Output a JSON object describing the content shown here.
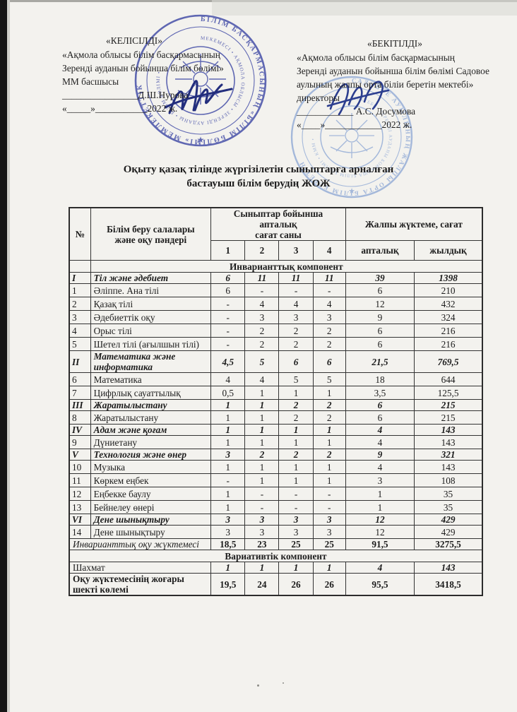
{
  "approval_left": {
    "title": "«КЕЛІСІЛДІ»",
    "lines": [
      "«Ақмола облысы білім басқармасының",
      "Зеренді    ауданын бойынша білім бөлімі»",
      "ММ басшысы"
    ],
    "signature_line": "________________Д.Ш.Нурова",
    "date_line": "«_____»___________2022 ж."
  },
  "approval_right": {
    "title": "«БЕКІТІЛДІ»",
    "lines": [
      "«Ақмола облысы білім басқармасының",
      "Зеренді    ауданын бойынша білім бөлімі Садовое",
      "аулының жалпы орта біліи беретін мектебі»",
      "директоры"
    ],
    "signature_line": "____________ А.С. Досумова",
    "date_line": "«____»____________2022 ж."
  },
  "stamps": {
    "left_color": "#3f49a5",
    "right_color": "#8aa5d4",
    "left_ring_text": "БІЛІМ БАСҚАРМАСЫНЫҢ «БІЛІМ БӨЛІМІ» МЕМЛЕКЕТТІК МЕКЕМЕСІ",
    "right_ring_text": "ЖАЛПЫ ОРТА БІЛІМ БЕРЕТІН МЕКТЕБІ • САДОВОЕ АУЫЛЫНЫҢ •"
  },
  "title": {
    "line1": "Оқыту қазақ тілінде жүргізілетін сыныптарға арналған",
    "line2": "бастауыш білім берудің ЖОЖ"
  },
  "table": {
    "header": {
      "num": "№",
      "subjects": "Білім беру салалары\nжәне оқу пәндері",
      "classes_group": "Сыныптар бойынша апталық\nсағат саны",
      "class_cols": [
        "1",
        "2",
        "3",
        "4"
      ],
      "total_group": "Жалпы жүктеме, сағат",
      "total_cols": [
        "апталық",
        "жылдық"
      ]
    },
    "rows": [
      {
        "type": "banner",
        "label": "Инварианттық  компонент"
      },
      {
        "type": "group",
        "num": "I",
        "name": "Тіл және әдебиет",
        "values": [
          "6",
          "11",
          "11",
          "11",
          "39",
          "1398"
        ]
      },
      {
        "type": "item",
        "num": "1",
        "name": "Әліппе. Ана тілі",
        "values": [
          "6",
          "-",
          "-",
          "-",
          "6",
          "210"
        ]
      },
      {
        "type": "item",
        "num": "2",
        "name": "Қазақ тілі",
        "values": [
          "-",
          "4",
          "4",
          "4",
          "12",
          "432"
        ]
      },
      {
        "type": "item",
        "num": "3",
        "name": "Әдебиеттік оқу",
        "values": [
          "-",
          "3",
          "3",
          "3",
          "9",
          "324"
        ]
      },
      {
        "type": "item",
        "num": "4",
        "name": "Орыс тілі",
        "values": [
          "-",
          "2",
          "2",
          "2",
          "6",
          "216"
        ]
      },
      {
        "type": "item",
        "num": "5",
        "name": "Шетел тілі (ағылшын тілі)",
        "values": [
          "-",
          "2",
          "2",
          "2",
          "6",
          "216"
        ]
      },
      {
        "type": "group tall",
        "num": "II",
        "name": "Математика және информатика",
        "values": [
          "4,5",
          "5",
          "6",
          "6",
          "21,5",
          "769,5"
        ]
      },
      {
        "type": "item",
        "num": "6",
        "name": "Математика",
        "values": [
          "4",
          "4",
          "5",
          "5",
          "18",
          "644"
        ]
      },
      {
        "type": "item",
        "num": "7",
        "name": "Цифрлық сауаттылық",
        "values": [
          "0,5",
          "1",
          "1",
          "1",
          "3,5",
          "125,5"
        ]
      },
      {
        "type": "group",
        "num": "III",
        "name": "Жаратылыстану",
        "values": [
          "1",
          "1",
          "2",
          "2",
          "6",
          "215"
        ]
      },
      {
        "type": "item",
        "num": "8",
        "name": "Жаратылыстану",
        "values": [
          "1",
          "1",
          "2",
          "2",
          "6",
          "215"
        ]
      },
      {
        "type": "group",
        "num": "IV",
        "name": "Адам және қоғам",
        "values": [
          "1",
          "1",
          "1",
          "1",
          "4",
          "143"
        ]
      },
      {
        "type": "item",
        "num": "9",
        "name": "Дүниетану",
        "values": [
          "1",
          "1",
          "1",
          "1",
          "4",
          "143"
        ]
      },
      {
        "type": "group",
        "num": "V",
        "name": "Технология және өнер",
        "values": [
          "3",
          "2",
          "2",
          "2",
          "9",
          "321"
        ]
      },
      {
        "type": "item",
        "num": "10",
        "name": "Музыка",
        "values": [
          "1",
          "1",
          "1",
          "1",
          "4",
          "143"
        ]
      },
      {
        "type": "item",
        "num": "11",
        "name": "Көркем еңбек",
        "values": [
          "-",
          "1",
          "1",
          "1",
          "3",
          "108"
        ]
      },
      {
        "type": "item",
        "num": "12",
        "name": "Еңбекке баулу",
        "values": [
          "1",
          "-",
          "-",
          "-",
          "1",
          "35"
        ]
      },
      {
        "type": "item",
        "num": "13",
        "name": "Бейнелеу өнері",
        "values": [
          "1",
          "-",
          "-",
          "-",
          "1",
          "35"
        ]
      },
      {
        "type": "group",
        "num": "VI",
        "name": "Дене шынықтыру",
        "values": [
          "3",
          "3",
          "3",
          "3",
          "12",
          "429"
        ]
      },
      {
        "type": "item",
        "num": "14",
        "name": "Дене шынықтыру",
        "values": [
          "3",
          "3",
          "3",
          "3",
          "12",
          "429"
        ]
      },
      {
        "type": "total-italic",
        "name": "Инварианттық  оқу  жүктемесі",
        "values": [
          "18,5",
          "23",
          "25",
          "25",
          "91,5",
          "3275,5"
        ]
      },
      {
        "type": "banner-full",
        "label": "Вариативтік компонент"
      },
      {
        "type": "variative",
        "name": "Шахмат",
        "values": [
          "1",
          "1",
          "1",
          "1",
          "4",
          "143"
        ]
      },
      {
        "type": "total-bold tall",
        "name": "Оқу жүктемесінің жоғары шекті көлемі",
        "values": [
          "19,5",
          "24",
          "26",
          "26",
          "95,5",
          "3418,5"
        ]
      }
    ]
  }
}
